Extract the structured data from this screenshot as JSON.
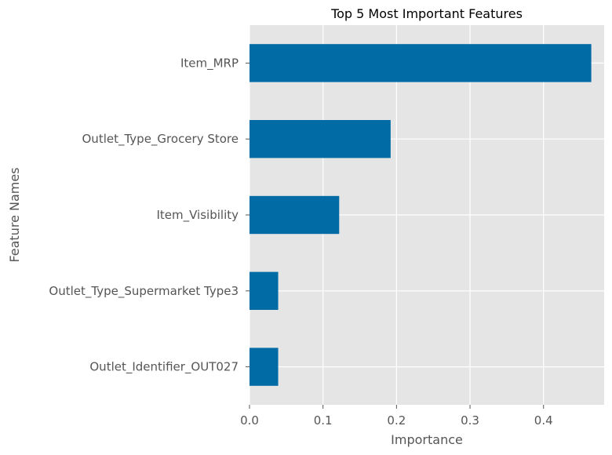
{
  "chart_data": {
    "type": "bar",
    "orientation": "horizontal",
    "title": "Top 5 Most Important Features",
    "xlabel": "Importance",
    "ylabel": "Feature Names",
    "categories": [
      "Item_MRP",
      "Outlet_Type_Grocery Store",
      "Item_Visibility",
      "Outlet_Type_Supermarket Type3",
      "Outlet_Identifier_OUT027"
    ],
    "values": [
      0.465,
      0.192,
      0.122,
      0.039,
      0.039
    ],
    "xlim": [
      0,
      0.4825
    ],
    "xticks": [
      0.0,
      0.1,
      0.2,
      0.3,
      0.4
    ],
    "xtick_labels": [
      "0.0",
      "0.1",
      "0.2",
      "0.3",
      "0.4"
    ],
    "grid": true,
    "legend": "none",
    "colors": {
      "bar": "#006ba4",
      "plot_background": "#e5e5e5",
      "grid": "#ffffff"
    }
  }
}
